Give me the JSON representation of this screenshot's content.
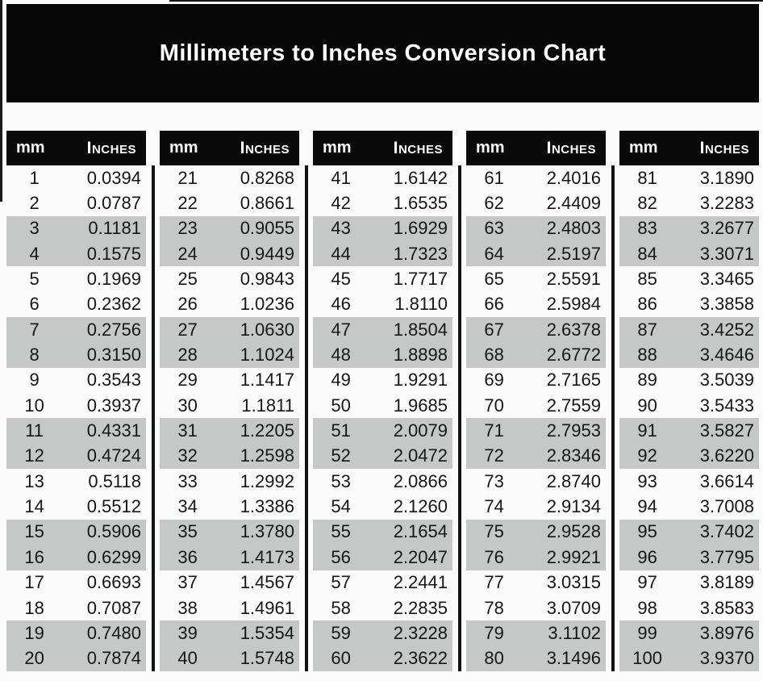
{
  "title": "Millimeters to Inches Conversion Chart",
  "colors": {
    "banner_bg": "#060606",
    "header_bg": "#0a0a0a",
    "stripe_gray": "#c6c8c7",
    "page_bg": "#fbfbfb",
    "text": "#161616",
    "header_text": "#ffffff"
  },
  "table": {
    "header": {
      "mm_label": "mm",
      "inches_label": "Inches"
    },
    "groups": [
      {
        "rows": [
          [
            "1",
            "0.0394"
          ],
          [
            "2",
            "0.0787"
          ],
          [
            "3",
            "0.1181"
          ],
          [
            "4",
            "0.1575"
          ],
          [
            "5",
            "0.1969"
          ],
          [
            "6",
            "0.2362"
          ],
          [
            "7",
            "0.2756"
          ],
          [
            "8",
            "0.3150"
          ],
          [
            "9",
            "0.3543"
          ],
          [
            "10",
            "0.3937"
          ],
          [
            "11",
            "0.4331"
          ],
          [
            "12",
            "0.4724"
          ],
          [
            "13",
            "0.5118"
          ],
          [
            "14",
            "0.5512"
          ],
          [
            "15",
            "0.5906"
          ],
          [
            "16",
            "0.6299"
          ],
          [
            "17",
            "0.6693"
          ],
          [
            "18",
            "0.7087"
          ],
          [
            "19",
            "0.7480"
          ],
          [
            "20",
            "0.7874"
          ]
        ]
      },
      {
        "rows": [
          [
            "21",
            "0.8268"
          ],
          [
            "22",
            "0.8661"
          ],
          [
            "23",
            "0.9055"
          ],
          [
            "24",
            "0.9449"
          ],
          [
            "25",
            "0.9843"
          ],
          [
            "26",
            "1.0236"
          ],
          [
            "27",
            "1.0630"
          ],
          [
            "28",
            "1.1024"
          ],
          [
            "29",
            "1.1417"
          ],
          [
            "30",
            "1.1811"
          ],
          [
            "31",
            "1.2205"
          ],
          [
            "32",
            "1.2598"
          ],
          [
            "33",
            "1.2992"
          ],
          [
            "34",
            "1.3386"
          ],
          [
            "35",
            "1.3780"
          ],
          [
            "36",
            "1.4173"
          ],
          [
            "37",
            "1.4567"
          ],
          [
            "38",
            "1.4961"
          ],
          [
            "39",
            "1.5354"
          ],
          [
            "40",
            "1.5748"
          ]
        ]
      },
      {
        "rows": [
          [
            "41",
            "1.6142"
          ],
          [
            "42",
            "1.6535"
          ],
          [
            "43",
            "1.6929"
          ],
          [
            "44",
            "1.7323"
          ],
          [
            "45",
            "1.7717"
          ],
          [
            "46",
            "1.8110"
          ],
          [
            "47",
            "1.8504"
          ],
          [
            "48",
            "1.8898"
          ],
          [
            "49",
            "1.9291"
          ],
          [
            "50",
            "1.9685"
          ],
          [
            "51",
            "2.0079"
          ],
          [
            "52",
            "2.0472"
          ],
          [
            "53",
            "2.0866"
          ],
          [
            "54",
            "2.1260"
          ],
          [
            "55",
            "2.1654"
          ],
          [
            "56",
            "2.2047"
          ],
          [
            "57",
            "2.2441"
          ],
          [
            "58",
            "2.2835"
          ],
          [
            "59",
            "2.3228"
          ],
          [
            "60",
            "2.3622"
          ]
        ]
      },
      {
        "rows": [
          [
            "61",
            "2.4016"
          ],
          [
            "62",
            "2.4409"
          ],
          [
            "63",
            "2.4803"
          ],
          [
            "64",
            "2.5197"
          ],
          [
            "65",
            "2.5591"
          ],
          [
            "66",
            "2.5984"
          ],
          [
            "67",
            "2.6378"
          ],
          [
            "68",
            "2.6772"
          ],
          [
            "69",
            "2.7165"
          ],
          [
            "70",
            "2.7559"
          ],
          [
            "71",
            "2.7953"
          ],
          [
            "72",
            "2.8346"
          ],
          [
            "73",
            "2.8740"
          ],
          [
            "74",
            "2.9134"
          ],
          [
            "75",
            "2.9528"
          ],
          [
            "76",
            "2.9921"
          ],
          [
            "77",
            "3.0315"
          ],
          [
            "78",
            "3.0709"
          ],
          [
            "79",
            "3.1102"
          ],
          [
            "80",
            "3.1496"
          ]
        ]
      },
      {
        "rows": [
          [
            "81",
            "3.1890"
          ],
          [
            "82",
            "3.2283"
          ],
          [
            "83",
            "3.2677"
          ],
          [
            "84",
            "3.3071"
          ],
          [
            "85",
            "3.3465"
          ],
          [
            "86",
            "3.3858"
          ],
          [
            "87",
            "3.4252"
          ],
          [
            "88",
            "3.4646"
          ],
          [
            "89",
            "3.5039"
          ],
          [
            "90",
            "3.5433"
          ],
          [
            "91",
            "3.5827"
          ],
          [
            "92",
            "3.6220"
          ],
          [
            "93",
            "3.6614"
          ],
          [
            "94",
            "3.7008"
          ],
          [
            "95",
            "3.7402"
          ],
          [
            "96",
            "3.7795"
          ],
          [
            "97",
            "3.8189"
          ],
          [
            "98",
            "3.8583"
          ],
          [
            "99",
            "3.8976"
          ],
          [
            "100",
            "3.9370"
          ]
        ]
      }
    ]
  }
}
